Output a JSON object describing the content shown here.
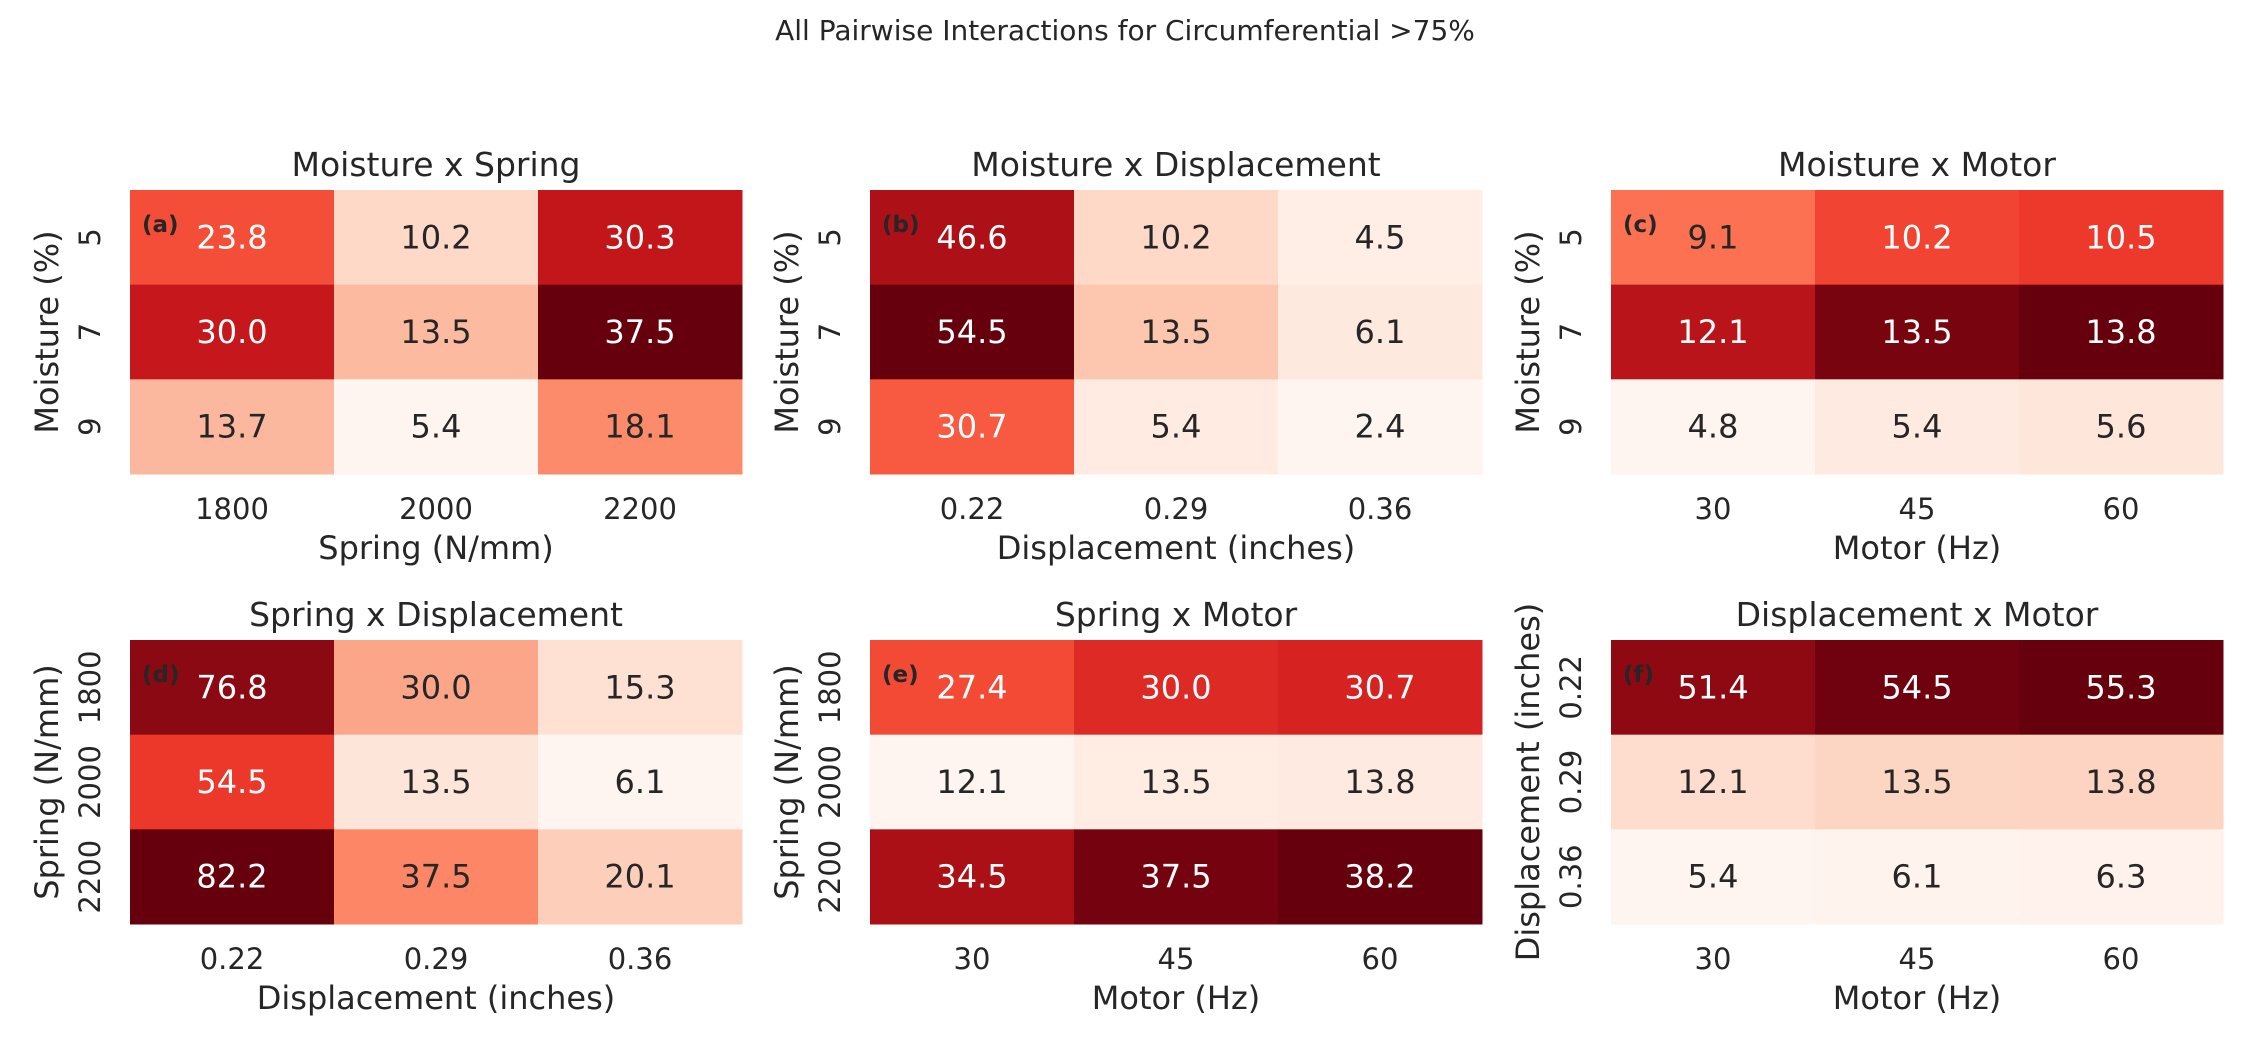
{
  "figure": {
    "title": "All Pairwise Interactions for Circumferential >75%"
  },
  "colors": {
    "colormap": "Reds",
    "background": "#ffffff",
    "text_dark": "#262626",
    "text_light": "#ffffff"
  },
  "chart_data": [
    {
      "type": "heatmap",
      "tag": "(a)",
      "title": "Moisture x Spring",
      "xlabel": "Spring (N/mm)",
      "ylabel": "Moisture (%)",
      "x": [
        "1800",
        "2000",
        "2200"
      ],
      "y": [
        "5",
        "7",
        "9"
      ],
      "values": [
        [
          23.8,
          10.2,
          30.3
        ],
        [
          30.0,
          13.5,
          37.5
        ],
        [
          13.7,
          5.4,
          18.1
        ]
      ],
      "labels": [
        [
          "23.8",
          "10.2",
          "30.3"
        ],
        [
          "30.0",
          "13.5",
          "37.5"
        ],
        [
          "13.7",
          "5.4",
          "18.1"
        ]
      ]
    },
    {
      "type": "heatmap",
      "tag": "(b)",
      "title": "Moisture x Displacement",
      "xlabel": "Displacement (inches)",
      "ylabel": "Moisture (%)",
      "x": [
        "0.22",
        "0.29",
        "0.36"
      ],
      "y": [
        "5",
        "7",
        "9"
      ],
      "values": [
        [
          46.6,
          10.2,
          4.5
        ],
        [
          54.5,
          13.5,
          6.1
        ],
        [
          30.7,
          5.4,
          2.4
        ]
      ],
      "labels": [
        [
          "46.6",
          "10.2",
          "4.5"
        ],
        [
          "54.5",
          "13.5",
          "6.1"
        ],
        [
          "30.7",
          "5.4",
          "2.4"
        ]
      ]
    },
    {
      "type": "heatmap",
      "tag": "(c)",
      "title": "Moisture x Motor",
      "xlabel": "Motor (Hz)",
      "ylabel": "Moisture (%)",
      "x": [
        "30",
        "45",
        "60"
      ],
      "y": [
        "5",
        "7",
        "9"
      ],
      "values": [
        [
          9.1,
          10.2,
          10.5
        ],
        [
          12.1,
          13.5,
          13.8
        ],
        [
          4.8,
          5.4,
          5.6
        ]
      ],
      "labels": [
        [
          "9.1",
          "10.2",
          "10.5"
        ],
        [
          "12.1",
          "13.5",
          "13.8"
        ],
        [
          "4.8",
          "5.4",
          "5.6"
        ]
      ]
    },
    {
      "type": "heatmap",
      "tag": "(d)",
      "title": "Spring x Displacement",
      "xlabel": "Displacement (inches)",
      "ylabel": "Spring (N/mm)",
      "x": [
        "0.22",
        "0.29",
        "0.36"
      ],
      "y": [
        "1800",
        "2000",
        "2200"
      ],
      "values": [
        [
          76.8,
          30.0,
          15.3
        ],
        [
          54.5,
          13.5,
          6.1
        ],
        [
          82.2,
          37.5,
          20.1
        ]
      ],
      "labels": [
        [
          "76.8",
          "30.0",
          "15.3"
        ],
        [
          "54.5",
          "13.5",
          "6.1"
        ],
        [
          "82.2",
          "37.5",
          "20.1"
        ]
      ]
    },
    {
      "type": "heatmap",
      "tag": "(e)",
      "title": "Spring x Motor",
      "xlabel": "Motor (Hz)",
      "ylabel": "Spring (N/mm)",
      "x": [
        "30",
        "45",
        "60"
      ],
      "y": [
        "1800",
        "2000",
        "2200"
      ],
      "values": [
        [
          27.4,
          30.0,
          30.7
        ],
        [
          12.1,
          13.5,
          13.8
        ],
        [
          34.5,
          37.5,
          38.2
        ]
      ],
      "labels": [
        [
          "27.4",
          "30.0",
          "30.7"
        ],
        [
          "12.1",
          "13.5",
          "13.8"
        ],
        [
          "34.5",
          "37.5",
          "38.2"
        ]
      ]
    },
    {
      "type": "heatmap",
      "tag": "(f)",
      "title": "Displacement x Motor",
      "xlabel": "Motor (Hz)",
      "ylabel": "Displacement (inches)",
      "x": [
        "30",
        "45",
        "60"
      ],
      "y": [
        "0.22",
        "0.29",
        "0.36"
      ],
      "values": [
        [
          51.4,
          54.5,
          55.3
        ],
        [
          12.1,
          13.5,
          13.8
        ],
        [
          5.4,
          6.1,
          6.3
        ]
      ],
      "labels": [
        [
          "51.4",
          "54.5",
          "55.3"
        ],
        [
          "12.1",
          "13.5",
          "13.8"
        ],
        [
          "5.4",
          "6.1",
          "6.3"
        ]
      ]
    }
  ]
}
